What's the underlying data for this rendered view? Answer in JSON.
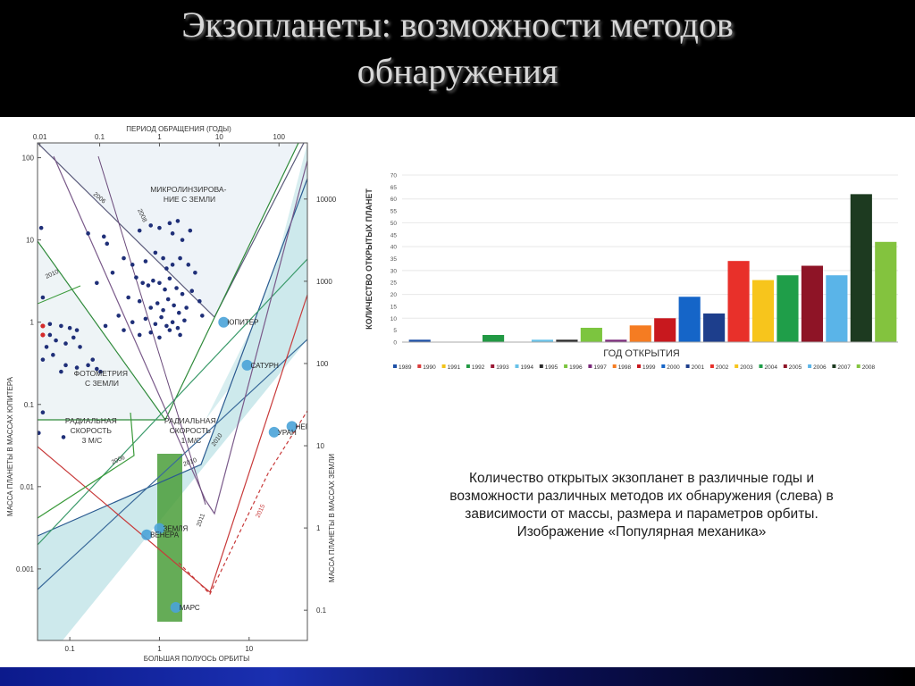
{
  "slide": {
    "title_line1": "Экзопланеты: возможности методов",
    "title_line2": "обнаружения",
    "caption": [
      "Количество открытых экзопланет в различные годы и",
      "возможности различных методов их обнаружения (слева) в",
      "зависимости от массы, размера и параметров орбиты.",
      "Изображение «Популярная механика»"
    ],
    "colors": {
      "background": "#000000",
      "title": "#d8d8d8",
      "panel": "#ffffff"
    }
  },
  "chart_data": [
    {
      "type": "scatter",
      "title": "",
      "x_top_label": "ПЕРИОД ОБРАЩЕНИЯ (ГОДЫ)",
      "x_top_ticks": [
        "0.01",
        "0.1",
        "1",
        "10",
        "100"
      ],
      "xlabel": "БОЛЬШАЯ ПОЛУОСЬ ОРБИТЫ",
      "x_ticks": [
        "0.1",
        "1",
        "10"
      ],
      "ylabel": "МАССА ПЛАНЕТЫ В МАССАХ ЮПИТЕРА",
      "y_ticks": [
        "100",
        "10",
        "1",
        "0.1",
        "0.01",
        "0.001"
      ],
      "y_right_label": "МАССА ПЛАНЕТЫ В МАССАХ ЗЕМЛИ",
      "y_right_ticks": [
        "10000",
        "1000",
        "100",
        "10",
        "1",
        "0.1"
      ],
      "x_scale": "log",
      "y_scale": "log",
      "region_labels": {
        "microlensing": [
          "МИКРОЛИНЗИРОВА-",
          "НИЕ С ЗЕМЛИ"
        ],
        "photometry": [
          "ФОТОМЕТРИЯ",
          "С ЗЕМЛИ"
        ],
        "rv3": [
          "РАДИАЛЬНАЯ",
          "СКОРОСТЬ",
          "3 М/С"
        ],
        "rv1": [
          "РАДИАЛЬНАЯ",
          "СКОРОСТЬ",
          "1 М/С"
        ]
      },
      "year_labels": [
        "2006",
        "2008",
        "2010",
        "2010",
        "2006",
        "2010",
        "2011",
        "2015"
      ],
      "solar_planets": [
        {
          "name": "ЮПИТЕР",
          "a": 5.2,
          "m": 1.0
        },
        {
          "name": "САТУРН",
          "a": 9.5,
          "m": 0.3
        },
        {
          "name": "НЕПТУН",
          "a": 30,
          "m": 0.054
        },
        {
          "name": "УРАН",
          "a": 19,
          "m": 0.046
        },
        {
          "name": "ЗЕМЛЯ",
          "a": 1.0,
          "m": 0.0031
        },
        {
          "name": "ВЕНЕРА",
          "a": 0.72,
          "m": 0.0026
        },
        {
          "name": "МАРС",
          "a": 1.52,
          "m": 0.00034
        }
      ],
      "exoplanets_blue": [
        [
          0.048,
          14
        ],
        [
          0.16,
          12
        ],
        [
          0.24,
          11
        ],
        [
          0.26,
          9
        ],
        [
          0.6,
          13
        ],
        [
          0.8,
          15
        ],
        [
          1.0,
          14
        ],
        [
          1.3,
          16
        ],
        [
          1.6,
          17
        ],
        [
          1.4,
          12
        ],
        [
          1.8,
          10
        ],
        [
          2.2,
          13
        ],
        [
          0.4,
          6
        ],
        [
          0.5,
          5
        ],
        [
          0.7,
          5.5
        ],
        [
          0.9,
          7
        ],
        [
          1.1,
          6
        ],
        [
          1.2,
          4.5
        ],
        [
          1.4,
          5
        ],
        [
          1.7,
          6
        ],
        [
          2.1,
          5
        ],
        [
          2.5,
          4
        ],
        [
          0.3,
          4
        ],
        [
          0.2,
          3
        ],
        [
          0.55,
          3.5
        ],
        [
          0.65,
          3
        ],
        [
          0.75,
          2.8
        ],
        [
          0.85,
          3.2
        ],
        [
          1.0,
          3.0
        ],
        [
          1.15,
          2.5
        ],
        [
          1.3,
          3.4
        ],
        [
          1.55,
          2.6
        ],
        [
          1.8,
          2.2
        ],
        [
          2.3,
          2.4
        ],
        [
          0.45,
          2
        ],
        [
          0.6,
          1.8
        ],
        [
          0.8,
          1.5
        ],
        [
          0.95,
          1.7
        ],
        [
          1.1,
          1.4
        ],
        [
          1.25,
          1.9
        ],
        [
          1.45,
          1.6
        ],
        [
          1.65,
          1.3
        ],
        [
          2.0,
          1.5
        ],
        [
          2.8,
          1.8
        ],
        [
          0.35,
          1.2
        ],
        [
          0.5,
          1.0
        ],
        [
          0.7,
          1.1
        ],
        [
          0.9,
          0.95
        ],
        [
          1.05,
          1.15
        ],
        [
          1.2,
          0.9
        ],
        [
          1.4,
          1.0
        ],
        [
          1.6,
          0.85
        ],
        [
          1.9,
          1.05
        ],
        [
          3.0,
          1.2
        ],
        [
          0.25,
          0.9
        ],
        [
          0.4,
          0.8
        ],
        [
          0.6,
          0.7
        ],
        [
          0.8,
          0.75
        ],
        [
          1.0,
          0.65
        ],
        [
          1.3,
          0.8
        ],
        [
          1.7,
          0.7
        ],
        [
          0.06,
          0.95
        ],
        [
          0.08,
          0.9
        ],
        [
          0.1,
          0.85
        ],
        [
          0.12,
          0.8
        ],
        [
          0.11,
          0.65
        ],
        [
          0.09,
          0.55
        ],
        [
          0.13,
          0.5
        ],
        [
          0.07,
          0.6
        ],
        [
          0.05,
          2.0
        ],
        [
          0.06,
          0.7
        ],
        [
          0.055,
          0.5
        ],
        [
          0.065,
          0.4
        ],
        [
          0.05,
          0.35
        ],
        [
          0.09,
          0.3
        ],
        [
          0.12,
          0.28
        ],
        [
          0.16,
          0.3
        ],
        [
          0.18,
          0.35
        ],
        [
          0.2,
          0.27
        ],
        [
          0.22,
          0.25
        ],
        [
          0.08,
          0.25
        ],
        [
          0.04,
          0.3
        ],
        [
          0.05,
          0.08
        ],
        [
          0.032,
          0.065
        ],
        [
          0.045,
          0.045
        ],
        [
          0.085,
          0.04
        ]
      ],
      "exoplanets_red": [
        [
          0.022,
          1.5
        ],
        [
          0.033,
          1.1
        ],
        [
          0.05,
          0.9
        ],
        [
          0.05,
          0.7
        ]
      ]
    },
    {
      "type": "bar",
      "title": "",
      "xlabel": "ГОД ОТКРЫТИЯ",
      "ylabel": "КОЛИЧЕСТВО ОТКРЫТЫХ ПЛАНЕТ",
      "ylim": [
        0,
        70
      ],
      "y_ticks": [
        0,
        5,
        10,
        15,
        20,
        25,
        30,
        35,
        40,
        45,
        50,
        55,
        60,
        65,
        70
      ],
      "grid": true,
      "legend_position": "bottom",
      "categories": [
        "1989",
        "1990",
        "1991",
        "1992",
        "1993",
        "1994",
        "1995",
        "1996",
        "1997",
        "1998",
        "1999",
        "2000",
        "2001",
        "2002",
        "2003",
        "2004",
        "2005",
        "2006",
        "2007",
        "2008"
      ],
      "values": [
        1,
        0,
        0,
        3,
        0,
        1,
        1,
        6,
        1,
        7,
        10,
        19,
        12,
        34,
        26,
        28,
        32,
        28,
        62,
        42
      ],
      "colors": [
        "#1c4fa6",
        "#d93b3b",
        "#f2c318",
        "#229944",
        "#9a1834",
        "#67c1e8",
        "#2a2a2a",
        "#7cc53f",
        "#7a2a7a",
        "#f57c22",
        "#c8181e",
        "#1565c8",
        "#1d3e8c",
        "#e8302a",
        "#f7c51c",
        "#1f9e49",
        "#8e1426",
        "#5ab4e8",
        "#1d3a20",
        "#83c33e"
      ]
    }
  ]
}
